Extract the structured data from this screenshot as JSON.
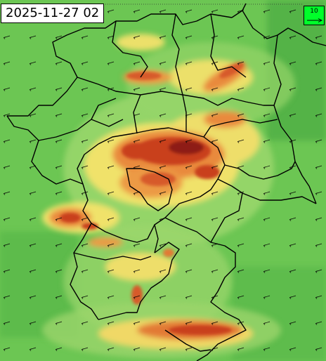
{
  "map": {
    "timestamp": "2025-11-27 02",
    "legend": {
      "reference_speed": "10",
      "color": "#00ff2a"
    },
    "colors": {
      "background_green": "#5cbf4a",
      "light_green": "#8fd36a",
      "yellow": "#f0e26a",
      "orange": "#e98a3c",
      "red": "#c9401f",
      "dark_red": "#8e1d12",
      "border": "#000000"
    }
  }
}
